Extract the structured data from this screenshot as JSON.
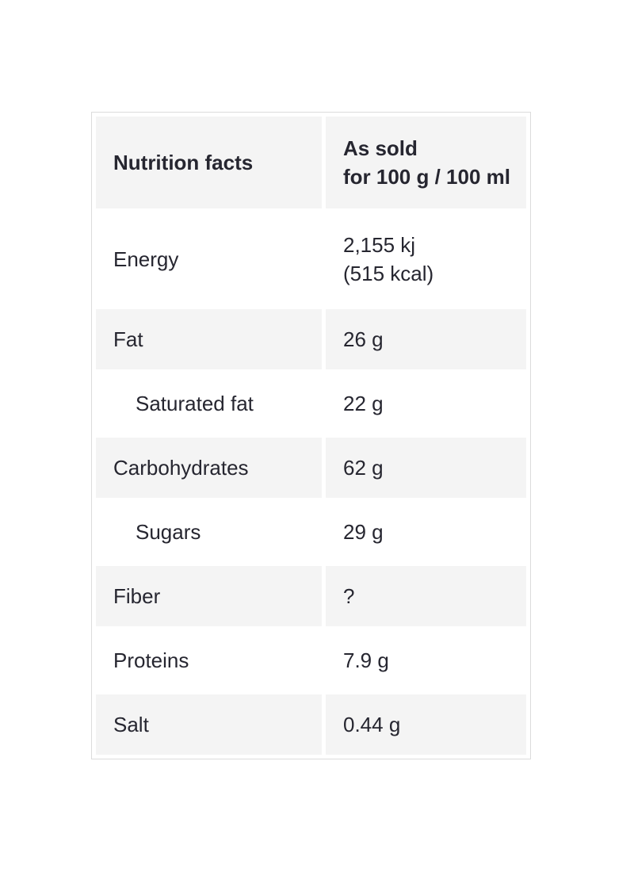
{
  "header": {
    "col1": "Nutrition facts",
    "col2_line1": "As sold",
    "col2_line2": "for 100 g / 100 ml"
  },
  "rows": [
    {
      "label": "Energy",
      "value": "2,155 kj",
      "value2": "(515 kcal)"
    },
    {
      "label": "Fat",
      "value": "26 g"
    },
    {
      "label": "Saturated fat",
      "value": "22 g"
    },
    {
      "label": "Carbohydrates",
      "value": "62 g"
    },
    {
      "label": "Sugars",
      "value": "29 g"
    },
    {
      "label": "Fiber",
      "value": "?"
    },
    {
      "label": "Proteins",
      "value": "7.9 g"
    },
    {
      "label": "Salt",
      "value": "0.44 g"
    }
  ]
}
